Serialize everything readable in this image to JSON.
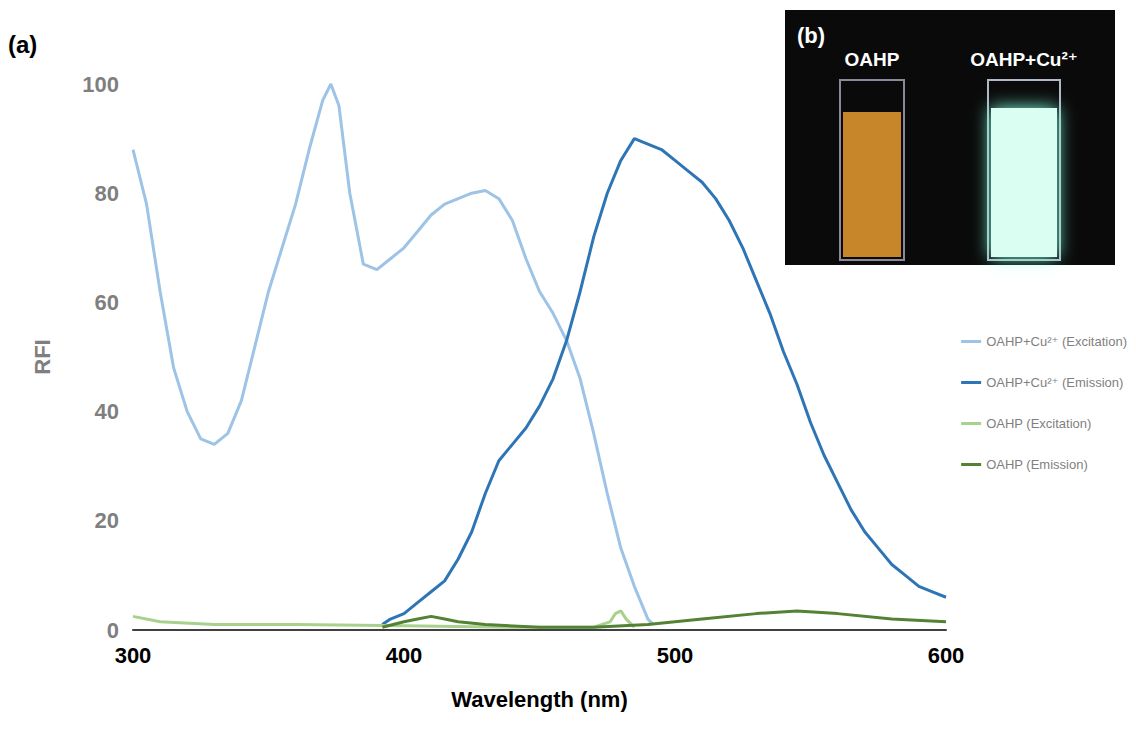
{
  "chart_data": {
    "type": "line",
    "panel_label": "(a)",
    "x_label": "Wavelength (nm)",
    "y_label": "RFI",
    "xlim": [
      300,
      600
    ],
    "xticks": [
      300,
      400,
      500,
      600
    ],
    "ylim": [
      0,
      100
    ],
    "yticks": [
      0,
      20,
      40,
      60,
      80,
      100
    ],
    "grid": false,
    "legend": "right",
    "series": [
      {
        "name": "OAHP+Cu²⁺ (Excitation)",
        "color": "#9dc3e6",
        "x": [
          300,
          305,
          310,
          315,
          320,
          325,
          330,
          335,
          340,
          345,
          350,
          355,
          360,
          365,
          370,
          373,
          376,
          380,
          385,
          390,
          395,
          400,
          405,
          410,
          415,
          420,
          425,
          430,
          435,
          440,
          445,
          450,
          455,
          460,
          465,
          470,
          475,
          480,
          485,
          490,
          492
        ],
        "values": [
          88,
          78,
          62,
          48,
          40,
          35,
          34,
          36,
          42,
          52,
          62,
          70,
          78,
          88,
          97,
          100,
          96,
          80,
          67,
          66,
          68,
          70,
          73,
          76,
          78,
          79,
          80,
          80.5,
          79,
          75,
          68,
          62,
          58,
          53,
          46,
          36,
          25,
          15,
          8,
          2,
          1
        ]
      },
      {
        "name": "OAHP+Cu²⁺ (Emission)",
        "color": "#2e75b6",
        "x": [
          392,
          395,
          400,
          405,
          410,
          415,
          420,
          425,
          430,
          435,
          440,
          445,
          450,
          455,
          460,
          465,
          470,
          475,
          480,
          485,
          490,
          495,
          500,
          505,
          510,
          515,
          520,
          525,
          530,
          535,
          540,
          545,
          550,
          555,
          560,
          565,
          570,
          575,
          580,
          585,
          590,
          595,
          600
        ],
        "values": [
          1,
          2,
          3,
          5,
          7,
          9,
          13,
          18,
          25,
          31,
          34,
          37,
          41,
          46,
          53,
          62,
          72,
          80,
          86,
          90,
          89,
          88,
          86,
          84,
          82,
          79,
          75,
          70,
          64,
          58,
          51,
          45,
          38,
          32,
          27,
          22,
          18,
          15,
          12,
          10,
          8,
          7,
          6
        ]
      },
      {
        "name": "OAHP (Excitation)",
        "color": "#a9d18e",
        "x": [
          300,
          310,
          330,
          360,
          400,
          440,
          470,
          476,
          478,
          480,
          482,
          485
        ],
        "values": [
          2.5,
          1.5,
          1,
          1,
          0.8,
          0.5,
          0.5,
          1.5,
          3,
          3.5,
          2,
          0.5
        ]
      },
      {
        "name": "OAHP (Emission)",
        "color": "#548235",
        "x": [
          392,
          400,
          405,
          410,
          415,
          420,
          430,
          450,
          470,
          490,
          510,
          530,
          545,
          560,
          580,
          600
        ],
        "values": [
          0.5,
          1.5,
          2,
          2.5,
          2,
          1.5,
          1,
          0.5,
          0.5,
          1,
          2,
          3,
          3.5,
          3,
          2,
          1.5
        ]
      }
    ],
    "inset": {
      "label": "(b)",
      "samples": [
        "OAHP",
        "OAHP+Cu²⁺"
      ]
    }
  }
}
